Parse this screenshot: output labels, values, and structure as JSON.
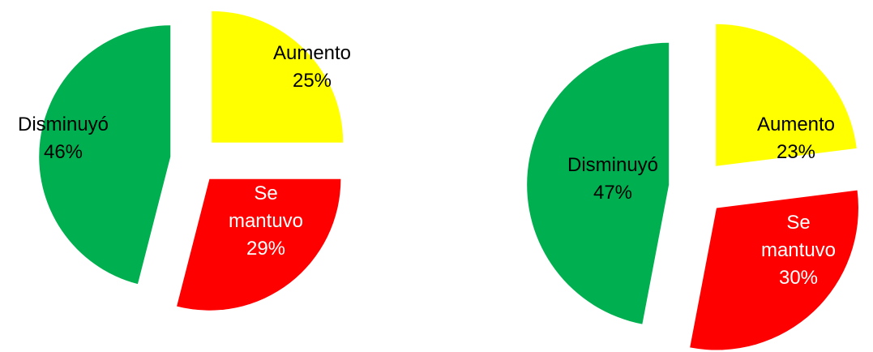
{
  "chart_data": [
    {
      "type": "pie",
      "title": "",
      "exploded": true,
      "slices": [
        {
          "name": "Aumento",
          "value": 25,
          "label": "25%",
          "color": "#FFFF00",
          "text_color": "#000000"
        },
        {
          "name": "Se mantuvo",
          "value": 29,
          "label": "29%",
          "color": "#FF0000",
          "text_color": "#FFFFFF"
        },
        {
          "name": "Disminuyó",
          "value": 46,
          "label": "46%",
          "color": "#00B050",
          "text_color": "#000000"
        }
      ]
    },
    {
      "type": "pie",
      "title": "",
      "exploded": true,
      "slices": [
        {
          "name": "Aumento",
          "value": 23,
          "label": "23%",
          "color": "#FFFF00",
          "text_color": "#000000"
        },
        {
          "name": "Se mantuvo",
          "value": 30,
          "label": "30%",
          "color": "#FF0000",
          "text_color": "#FFFFFF"
        },
        {
          "name": "Disminuyó",
          "value": 47,
          "label": "47%",
          "color": "#00B050",
          "text_color": "#000000"
        }
      ]
    }
  ]
}
